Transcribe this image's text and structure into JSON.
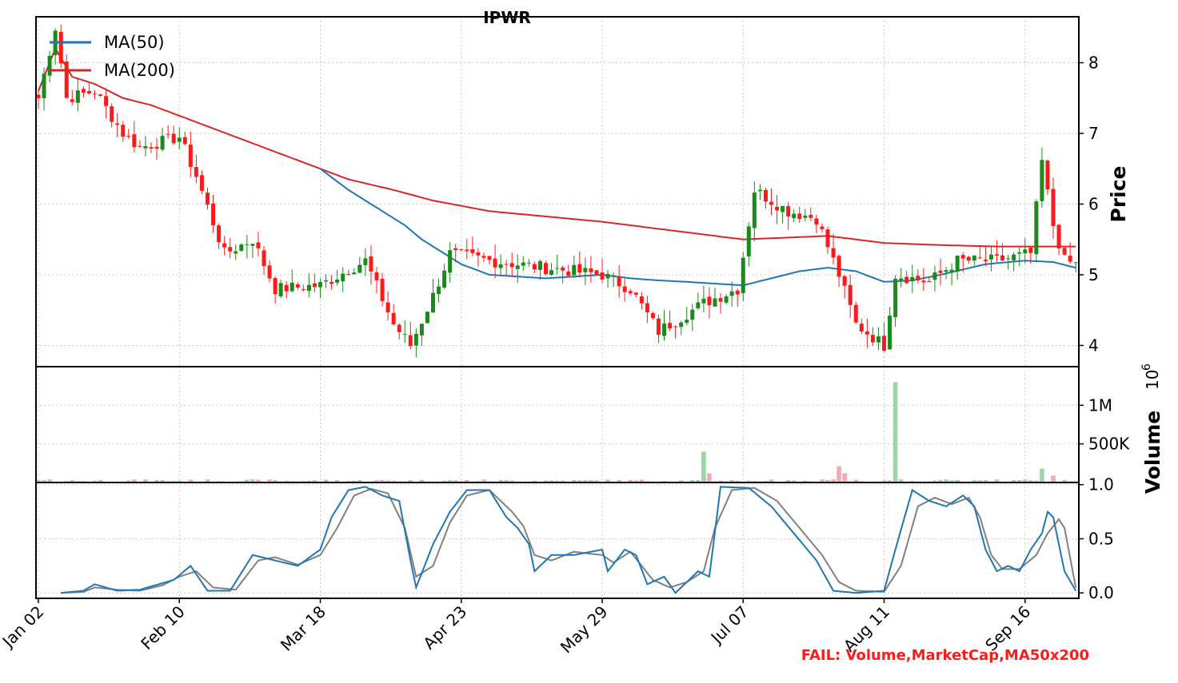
{
  "chart_data": {
    "type": "candlestick",
    "title": "IPWR",
    "colors": {
      "up": "#1a8a1a",
      "down": "#ff1a1a",
      "ma50": "#1f77b4",
      "ma200": "#d62728",
      "up_volume": "#9fd4a8",
      "down_volume": "#f4a9b3",
      "osc_fast": "#1f77b4",
      "osc_slow": "#808080"
    },
    "x_tick_labels": [
      "Jan 02",
      "Feb 10",
      "Mar 18",
      "Apr 23",
      "May 29",
      "Jul 07",
      "Aug 11",
      "Sep 16"
    ],
    "x_tick_index": [
      0,
      25,
      50,
      75,
      100,
      125,
      150,
      175
    ],
    "num_days": 185,
    "price_panel": {
      "ylabel": "Price",
      "ylim": [
        3.7,
        8.65
      ],
      "ticks": [
        4,
        5,
        6,
        7,
        8
      ],
      "legend": [
        {
          "label": "MA(50)",
          "color": "#1f77b4"
        },
        {
          "label": "MA(200)",
          "color": "#d62728"
        }
      ],
      "legend_position": "top-left",
      "price_anchors": [
        [
          0,
          7.5
        ],
        [
          3,
          8.5
        ],
        [
          5,
          7.5
        ],
        [
          10,
          7.6
        ],
        [
          15,
          7.0
        ],
        [
          18,
          6.8
        ],
        [
          25,
          6.95
        ],
        [
          28,
          6.4
        ],
        [
          33,
          5.3
        ],
        [
          38,
          5.5
        ],
        [
          42,
          4.8
        ],
        [
          50,
          4.85
        ],
        [
          58,
          5.2
        ],
        [
          63,
          4.3
        ],
        [
          66,
          4.0
        ],
        [
          70,
          4.7
        ],
        [
          73,
          5.3
        ],
        [
          80,
          5.2
        ],
        [
          90,
          5.1
        ],
        [
          100,
          5.0
        ],
        [
          105,
          4.8
        ],
        [
          110,
          4.2
        ],
        [
          118,
          4.6
        ],
        [
          124,
          4.8
        ],
        [
          127,
          6.2
        ],
        [
          133,
          5.9
        ],
        [
          138,
          5.8
        ],
        [
          142,
          5.0
        ],
        [
          145,
          4.3
        ],
        [
          150,
          4.0
        ],
        [
          152,
          5.0
        ],
        [
          158,
          4.9
        ],
        [
          163,
          5.2
        ],
        [
          170,
          5.2
        ],
        [
          176,
          5.3
        ],
        [
          178,
          6.6
        ],
        [
          180,
          5.7
        ],
        [
          182,
          5.2
        ],
        [
          184,
          5.15
        ]
      ],
      "ma50_anchors": [
        [
          50,
          6.5
        ],
        [
          55,
          6.2
        ],
        [
          58,
          6.05
        ],
        [
          65,
          5.7
        ],
        [
          68,
          5.5
        ],
        [
          72,
          5.3
        ],
        [
          75,
          5.15
        ],
        [
          80,
          5.0
        ],
        [
          90,
          4.95
        ],
        [
          100,
          5.0
        ],
        [
          105,
          4.95
        ],
        [
          110,
          4.92
        ],
        [
          115,
          4.9
        ],
        [
          125,
          4.85
        ],
        [
          130,
          4.95
        ],
        [
          135,
          5.05
        ],
        [
          140,
          5.1
        ],
        [
          145,
          5.05
        ],
        [
          150,
          4.9
        ],
        [
          155,
          4.92
        ],
        [
          160,
          5.0
        ],
        [
          168,
          5.15
        ],
        [
          175,
          5.2
        ],
        [
          180,
          5.18
        ],
        [
          184,
          5.1
        ]
      ],
      "ma200_anchors": [
        [
          0,
          7.6
        ],
        [
          3,
          8.2
        ],
        [
          6,
          7.8
        ],
        [
          10,
          7.7
        ],
        [
          15,
          7.5
        ],
        [
          20,
          7.4
        ],
        [
          30,
          7.1
        ],
        [
          40,
          6.8
        ],
        [
          50,
          6.5
        ],
        [
          55,
          6.35
        ],
        [
          63,
          6.2
        ],
        [
          70,
          6.05
        ],
        [
          80,
          5.9
        ],
        [
          100,
          5.75
        ],
        [
          110,
          5.65
        ],
        [
          120,
          5.55
        ],
        [
          125,
          5.5
        ],
        [
          140,
          5.55
        ],
        [
          150,
          5.45
        ],
        [
          160,
          5.42
        ],
        [
          170,
          5.4
        ],
        [
          184,
          5.4
        ]
      ]
    },
    "volume_panel": {
      "ylabel": "Volume",
      "exponent_label": "10",
      "exponent_power": "6",
      "ylim": [
        0,
        1500000
      ],
      "ticks": [
        500000,
        1000000
      ],
      "tick_labels": [
        "500K",
        "1M"
      ],
      "spikes": [
        [
          118,
          400000
        ],
        [
          119,
          120000
        ],
        [
          142,
          210000
        ],
        [
          143,
          120000
        ],
        [
          152,
          1300000
        ],
        [
          178,
          180000
        ],
        [
          180,
          90000
        ]
      ],
      "base_volume": 25000
    },
    "oscillator_panel": {
      "ylim": [
        -0.05,
        1.02
      ],
      "ticks": [
        0.0,
        0.5,
        1.0
      ],
      "tick_labels": [
        "0.0",
        "0.5",
        "1.0"
      ],
      "fast_anchors": [
        [
          4,
          0.0
        ],
        [
          8,
          0.02
        ],
        [
          10,
          0.08
        ],
        [
          14,
          0.02
        ],
        [
          18,
          0.03
        ],
        [
          20,
          0.06
        ],
        [
          24,
          0.12
        ],
        [
          27,
          0.25
        ],
        [
          30,
          0.02
        ],
        [
          34,
          0.02
        ],
        [
          38,
          0.35
        ],
        [
          42,
          0.3
        ],
        [
          46,
          0.25
        ],
        [
          50,
          0.4
        ],
        [
          52,
          0.7
        ],
        [
          55,
          0.95
        ],
        [
          58,
          0.98
        ],
        [
          61,
          0.9
        ],
        [
          64,
          0.85
        ],
        [
          66,
          0.3
        ],
        [
          67,
          0.05
        ],
        [
          70,
          0.45
        ],
        [
          73,
          0.75
        ],
        [
          76,
          0.95
        ],
        [
          80,
          0.95
        ],
        [
          83,
          0.7
        ],
        [
          85,
          0.6
        ],
        [
          87,
          0.45
        ],
        [
          88,
          0.2
        ],
        [
          91,
          0.35
        ],
        [
          95,
          0.35
        ],
        [
          100,
          0.4
        ],
        [
          101,
          0.2
        ],
        [
          104,
          0.4
        ],
        [
          106,
          0.35
        ],
        [
          108,
          0.08
        ],
        [
          111,
          0.15
        ],
        [
          113,
          0.0
        ],
        [
          117,
          0.2
        ],
        [
          119,
          0.15
        ],
        [
          121,
          0.98
        ],
        [
          126,
          0.97
        ],
        [
          130,
          0.8
        ],
        [
          134,
          0.55
        ],
        [
          138,
          0.3
        ],
        [
          141,
          0.02
        ],
        [
          145,
          0.0
        ],
        [
          150,
          0.02
        ],
        [
          152,
          0.4
        ],
        [
          155,
          0.95
        ],
        [
          158,
          0.85
        ],
        [
          161,
          0.8
        ],
        [
          164,
          0.9
        ],
        [
          166,
          0.8
        ],
        [
          168,
          0.4
        ],
        [
          170,
          0.2
        ],
        [
          172,
          0.25
        ],
        [
          174,
          0.2
        ],
        [
          176,
          0.4
        ],
        [
          178,
          0.55
        ],
        [
          179,
          0.75
        ],
        [
          180,
          0.7
        ],
        [
          182,
          0.2
        ],
        [
          184,
          0.02
        ]
      ],
      "slow_anchors": [
        [
          4,
          0.0
        ],
        [
          8,
          0.01
        ],
        [
          10,
          0.05
        ],
        [
          14,
          0.03
        ],
        [
          18,
          0.02
        ],
        [
          22,
          0.07
        ],
        [
          25,
          0.15
        ],
        [
          28,
          0.2
        ],
        [
          31,
          0.05
        ],
        [
          35,
          0.03
        ],
        [
          39,
          0.3
        ],
        [
          42,
          0.33
        ],
        [
          46,
          0.26
        ],
        [
          50,
          0.35
        ],
        [
          53,
          0.6
        ],
        [
          56,
          0.9
        ],
        [
          59,
          0.96
        ],
        [
          62,
          0.92
        ],
        [
          65,
          0.6
        ],
        [
          67,
          0.15
        ],
        [
          70,
          0.25
        ],
        [
          73,
          0.65
        ],
        [
          76,
          0.9
        ],
        [
          80,
          0.95
        ],
        [
          84,
          0.75
        ],
        [
          86,
          0.62
        ],
        [
          88,
          0.35
        ],
        [
          91,
          0.3
        ],
        [
          95,
          0.38
        ],
        [
          100,
          0.35
        ],
        [
          102,
          0.28
        ],
        [
          105,
          0.38
        ],
        [
          107,
          0.25
        ],
        [
          109,
          0.12
        ],
        [
          112,
          0.05
        ],
        [
          115,
          0.1
        ],
        [
          118,
          0.2
        ],
        [
          120,
          0.6
        ],
        [
          123,
          0.95
        ],
        [
          127,
          0.97
        ],
        [
          131,
          0.85
        ],
        [
          135,
          0.6
        ],
        [
          139,
          0.35
        ],
        [
          142,
          0.1
        ],
        [
          145,
          0.02
        ],
        [
          150,
          0.01
        ],
        [
          153,
          0.25
        ],
        [
          156,
          0.8
        ],
        [
          159,
          0.88
        ],
        [
          162,
          0.82
        ],
        [
          165,
          0.88
        ],
        [
          167,
          0.7
        ],
        [
          169,
          0.35
        ],
        [
          171,
          0.22
        ],
        [
          174,
          0.22
        ],
        [
          177,
          0.35
        ],
        [
          179,
          0.55
        ],
        [
          181,
          0.68
        ],
        [
          182,
          0.6
        ],
        [
          184,
          0.05
        ]
      ]
    },
    "annotation": "FAIL: Volume,MarketCap,MA50x200"
  }
}
